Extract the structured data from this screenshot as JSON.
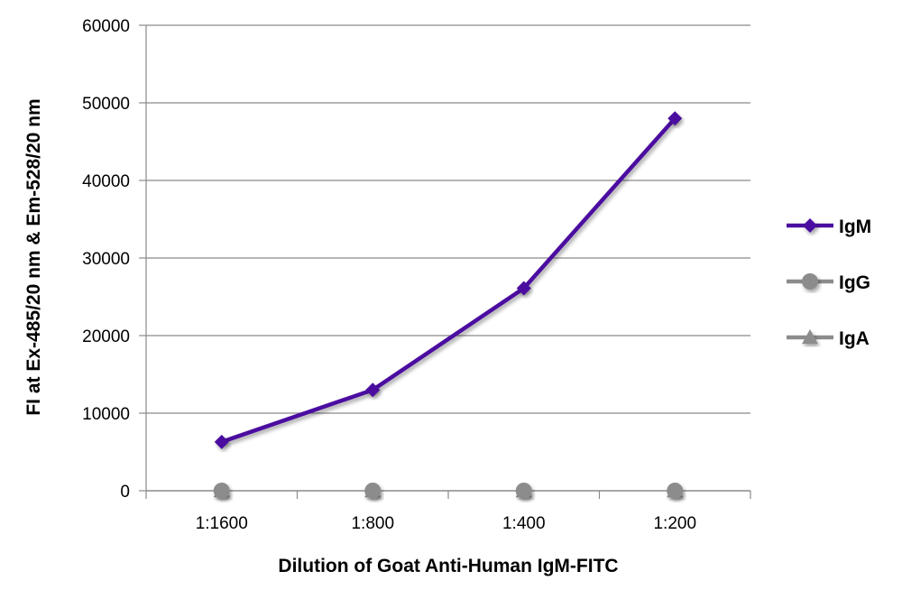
{
  "chart_data": {
    "type": "line",
    "title": "",
    "xlabel": "Dilution of Goat Anti-Human IgM-FITC",
    "ylabel": "FI at Ex-485/20 nm & Em-528/20 nm",
    "categories": [
      "1:1600",
      "1:800",
      "1:400",
      "1:200"
    ],
    "ylim": [
      0,
      60000
    ],
    "yticks": [
      0,
      10000,
      20000,
      30000,
      40000,
      50000,
      60000
    ],
    "grid": true,
    "legend_position": "right",
    "series": [
      {
        "name": "IgM",
        "values": [
          6300,
          13000,
          26100,
          48000
        ],
        "color": "#4B0FA0",
        "marker": "diamond"
      },
      {
        "name": "IgG",
        "values": [
          0,
          0,
          0,
          0
        ],
        "color": "#8C8C8C",
        "marker": "circle"
      },
      {
        "name": "IgA",
        "values": [
          0,
          0,
          0,
          0
        ],
        "color": "#8C8C8C",
        "marker": "triangle"
      }
    ]
  }
}
